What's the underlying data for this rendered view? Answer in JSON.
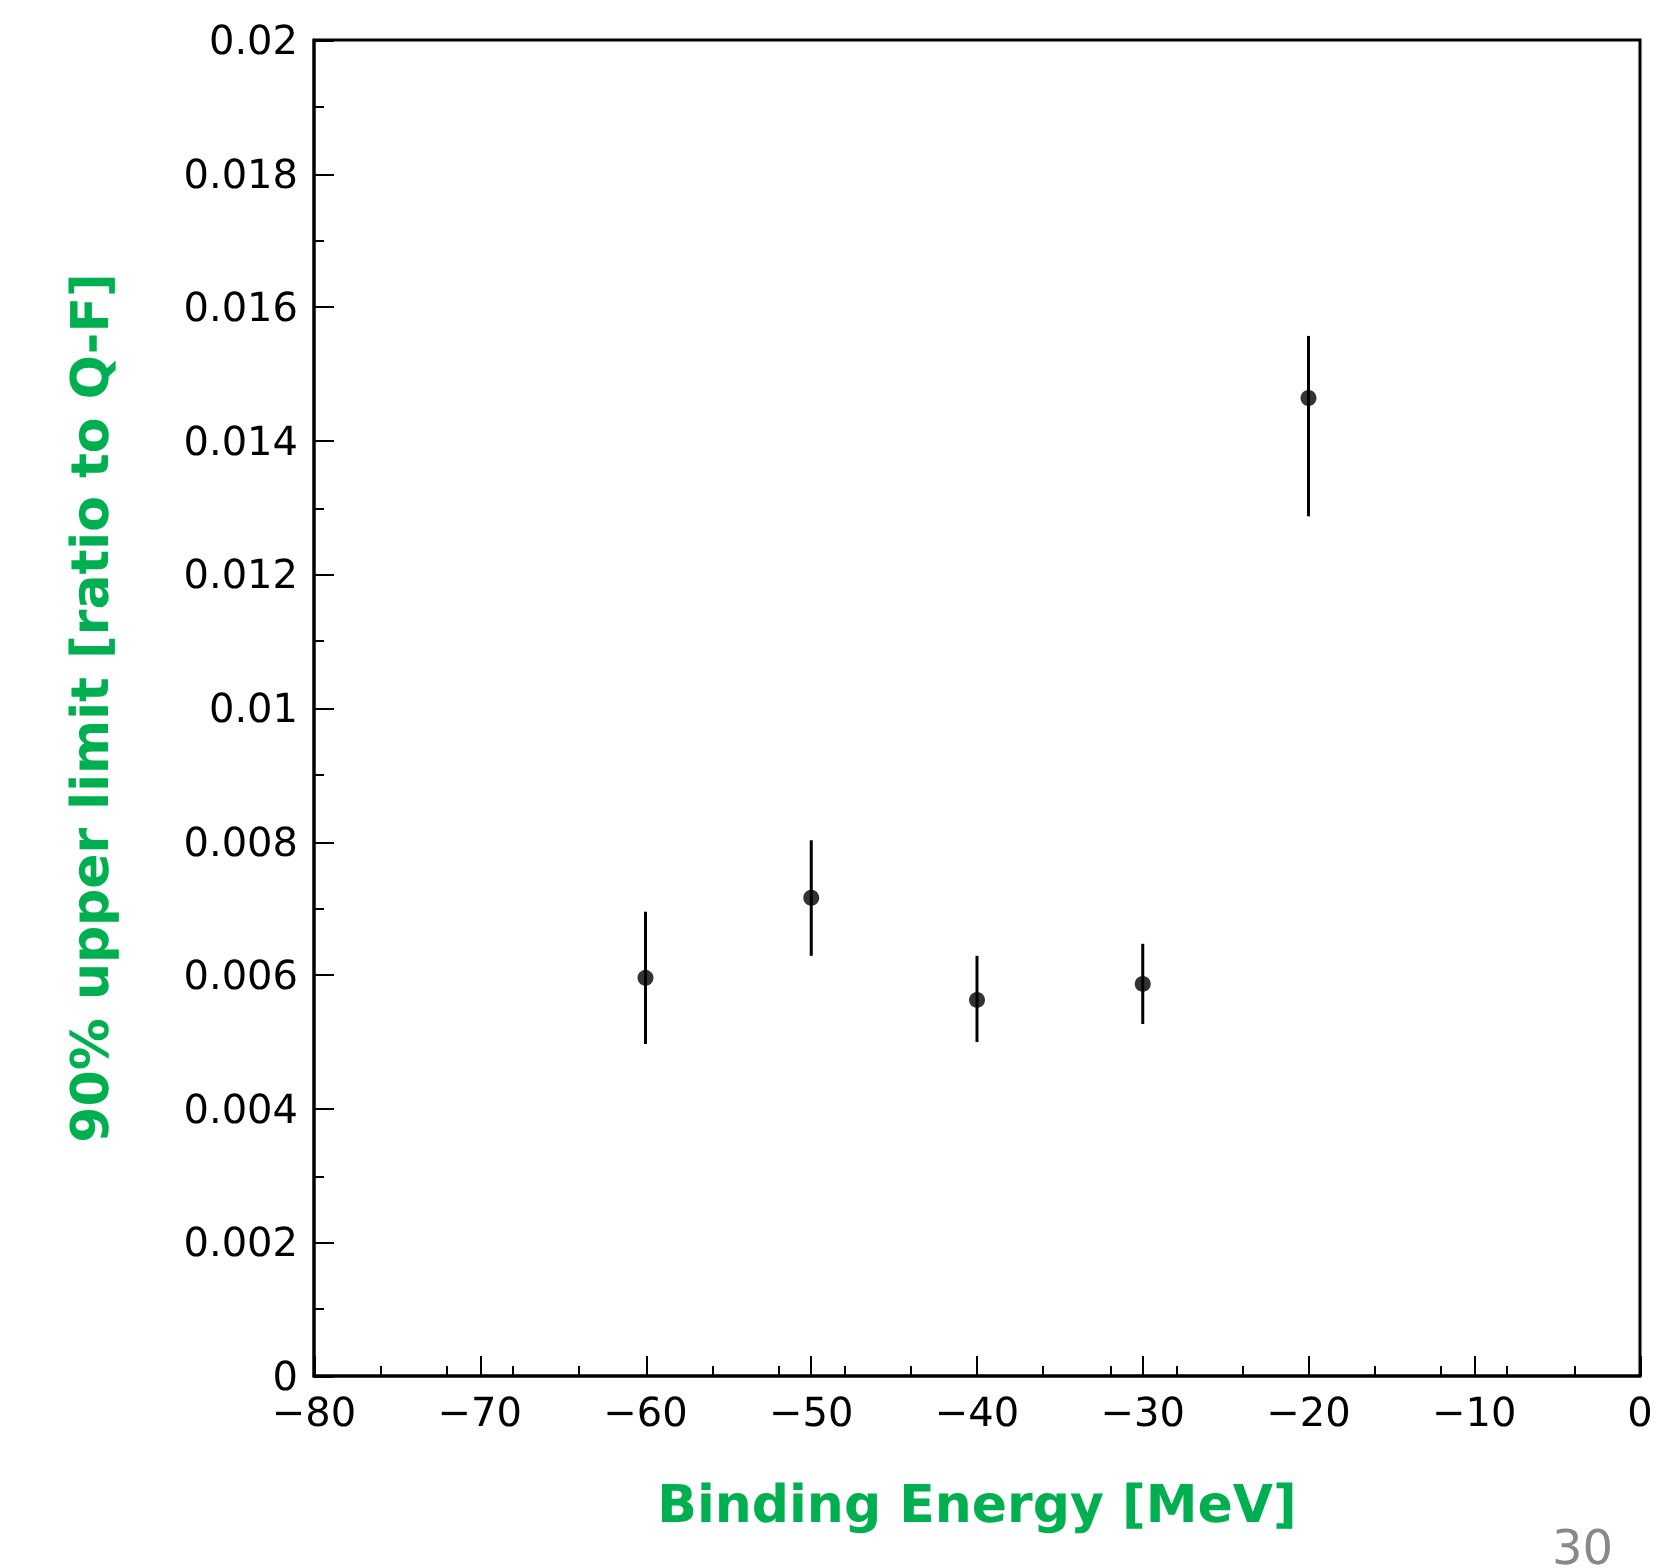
{
  "chart_data": {
    "type": "scatter",
    "xlabel": "Binding Energy [MeV]",
    "ylabel": "90% upper limit [ratio to Q-F]",
    "x": [
      -60,
      -50,
      -40,
      -30,
      -20
    ],
    "values": [
      0.00596,
      0.00716,
      0.00563,
      0.00587,
      0.01464
    ],
    "errors": [
      [
        0.00497,
        0.00695
      ],
      [
        0.00629,
        0.00802
      ],
      [
        0.005,
        0.00629
      ],
      [
        0.00527,
        0.00647
      ],
      [
        0.01287,
        0.01557
      ]
    ],
    "color": "#000000",
    "marker": "circle",
    "xlim": [
      -80,
      0
    ],
    "xticks": [
      {
        "value": -80,
        "label": "−80"
      },
      {
        "value": -70,
        "label": "−70"
      },
      {
        "value": -60,
        "label": "−60"
      },
      {
        "value": -50,
        "label": "−50"
      },
      {
        "value": -40,
        "label": "−40"
      },
      {
        "value": -30,
        "label": "−30"
      },
      {
        "value": -20,
        "label": "−20"
      },
      {
        "value": -10,
        "label": "−10"
      },
      0
    ],
    "ylim": [
      0,
      0.02
    ],
    "yticks": [
      0,
      0.002,
      0.004,
      0.006,
      0.008,
      0.01,
      0.012,
      0.014,
      0.016,
      0.018,
      0.02
    ],
    "grid": false,
    "annotations": [
      "30"
    ]
  }
}
